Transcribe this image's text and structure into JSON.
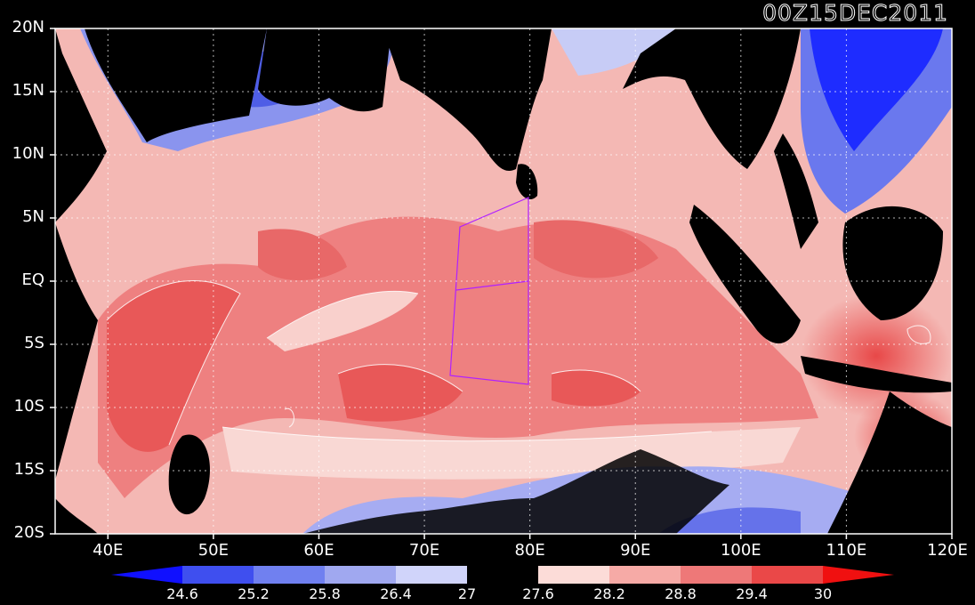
{
  "title": "00Z15DEC2011",
  "map": {
    "lon_range": [
      35,
      120
    ],
    "lat_range": [
      -20,
      20
    ],
    "lat_ticks": [
      {
        "value": 20,
        "label": "20N"
      },
      {
        "value": 15,
        "label": "15N"
      },
      {
        "value": 10,
        "label": "10N"
      },
      {
        "value": 5,
        "label": "5N"
      },
      {
        "value": 0,
        "label": "EQ"
      },
      {
        "value": -5,
        "label": "5S"
      },
      {
        "value": -10,
        "label": "10S"
      },
      {
        "value": -15,
        "label": "15S"
      },
      {
        "value": -20,
        "label": "20S"
      }
    ],
    "lon_ticks": [
      {
        "value": 40,
        "label": "40E"
      },
      {
        "value": 50,
        "label": "50E"
      },
      {
        "value": 60,
        "label": "60E"
      },
      {
        "value": 70,
        "label": "70E"
      },
      {
        "value": 80,
        "label": "80E"
      },
      {
        "value": 90,
        "label": "90E"
      },
      {
        "value": 100,
        "label": "100E"
      },
      {
        "value": 110,
        "label": "110E"
      },
      {
        "value": 120,
        "label": "120E"
      }
    ],
    "grid_lines": "dotted"
  },
  "colorbar": {
    "levels": [
      "24.6",
      "25.2",
      "25.8",
      "26.4",
      "27",
      "27.6",
      "28.2",
      "28.8",
      "29.4",
      "30"
    ],
    "colors": [
      "#1010ff",
      "#3f4fef",
      "#7080f0",
      "#a0a8f0",
      "#d0d4fa",
      "#000000",
      "#fcdcd8",
      "#f6aaa6",
      "#ee7878",
      "#ea4848",
      "#f01010"
    ]
  },
  "colors": {
    "ocean": "#f0a0a0",
    "land": "#000000",
    "overlay_line": "#b020ff"
  }
}
